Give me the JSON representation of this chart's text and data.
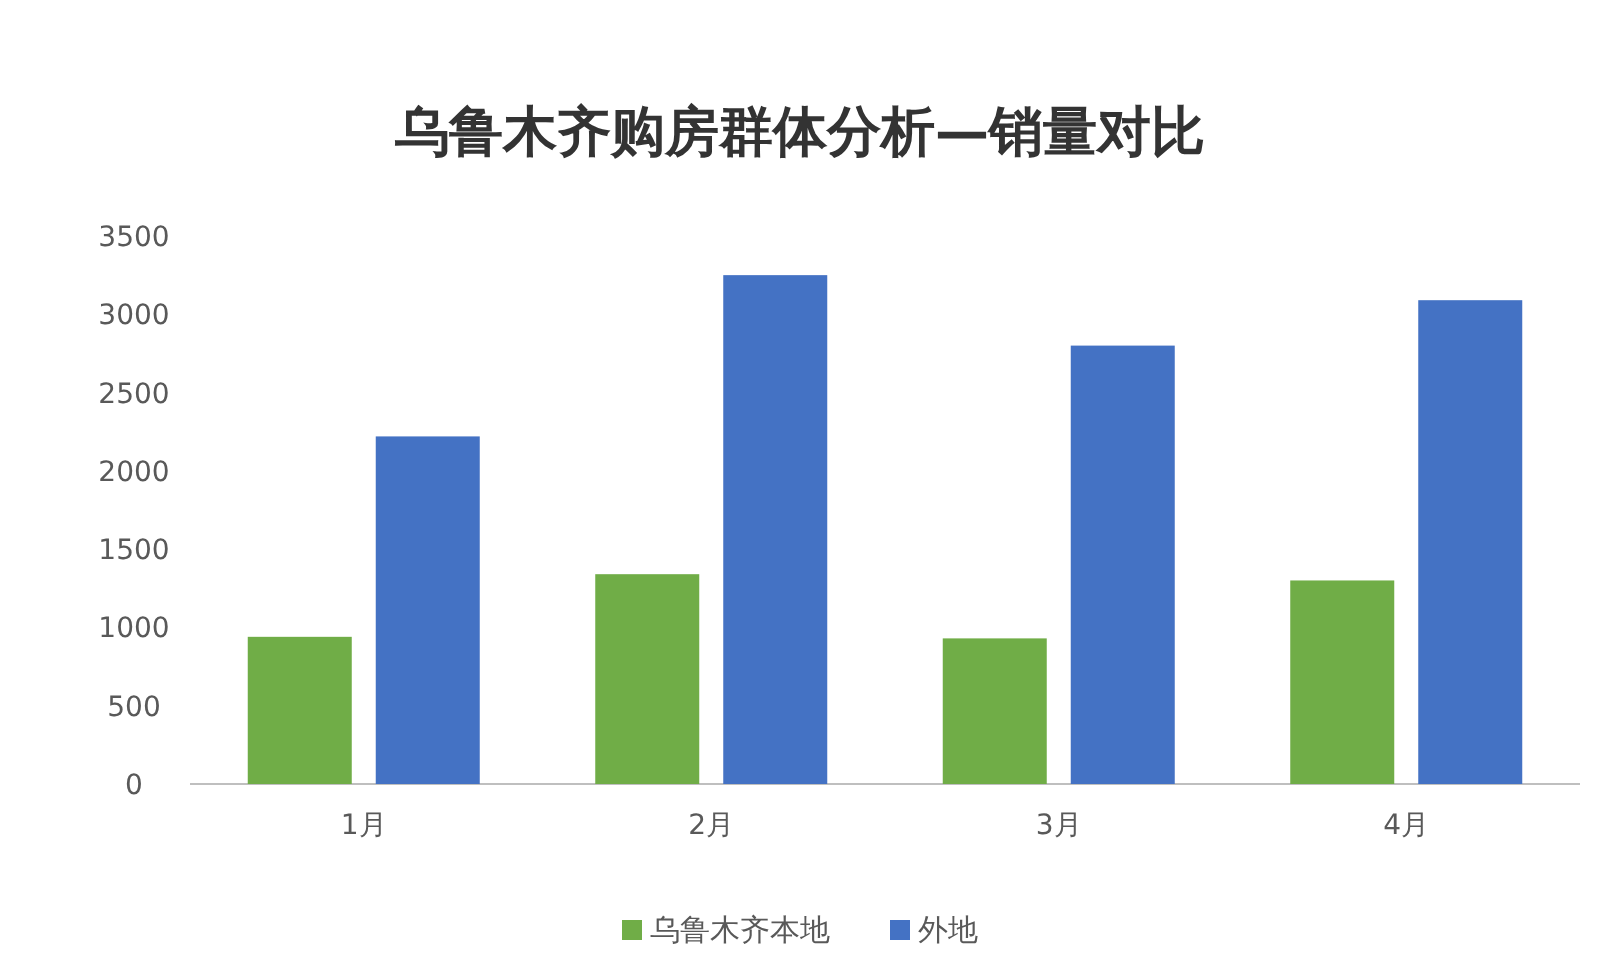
{
  "chart_data": {
    "type": "bar",
    "title": "乌鲁木齐购房群体分析—销量对比",
    "categories": [
      "1月",
      "2月",
      "3月",
      "4月"
    ],
    "series": [
      {
        "name": "乌鲁木齐本地",
        "color": "#70ad47",
        "values": [
          940,
          1340,
          930,
          1300
        ]
      },
      {
        "name": "外地",
        "color": "#4472c4",
        "values": [
          2220,
          3250,
          2800,
          3090
        ]
      }
    ],
    "ylim": [
      0,
      3500
    ],
    "yticks": [
      0,
      500,
      1000,
      1500,
      2000,
      2500,
      3000,
      3500
    ],
    "legend": "bottom"
  }
}
